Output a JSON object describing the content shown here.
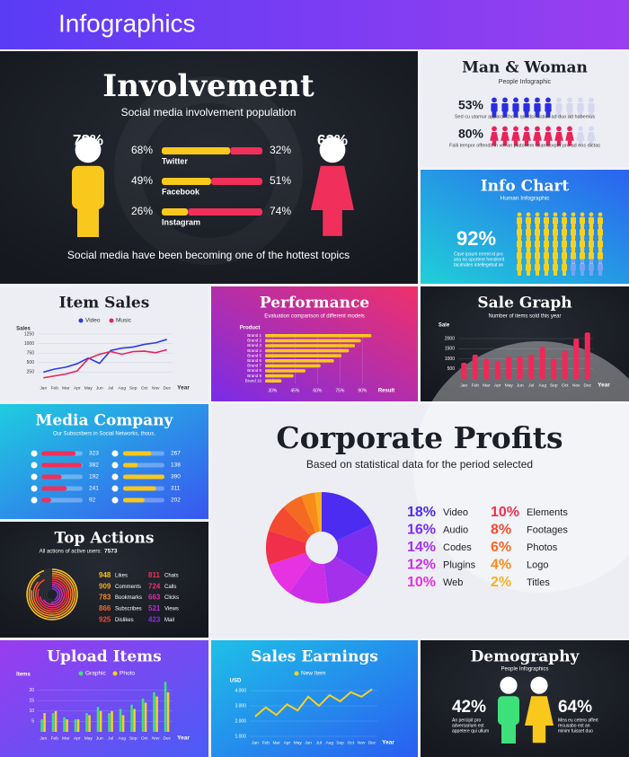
{
  "header": {
    "title": "Infographics"
  },
  "involvement": {
    "title": "Involvement",
    "subtitle": "Social media involvement population",
    "left_label": "78%",
    "right_label": "62%",
    "rows": [
      {
        "name": "Twitter",
        "left": 68,
        "left_label": "68%",
        "right": 32,
        "right_label": "32%"
      },
      {
        "name": "Facebook",
        "left": 49,
        "left_label": "49%",
        "right": 51,
        "right_label": "51%"
      },
      {
        "name": "Instagram",
        "left": 26,
        "left_label": "26%",
        "right": 74,
        "right_label": "74%"
      }
    ],
    "footer": "Social media have been becoming one of the hottest topics"
  },
  "man_woman": {
    "title": "Man & Woman",
    "subtitle": "People Infographic",
    "rows": [
      {
        "value": 53,
        "label": "53%",
        "text": "Sed cu utamur apparat choro quodsi fastidii ad duo ad habemus",
        "color": "#2b2ee0"
      },
      {
        "value": 80,
        "label": "80%",
        "text": "Falli tempor offendit in vel an platonem ullamcorper pro ad eos dictas",
        "color": "#e8245a"
      }
    ]
  },
  "info_chart": {
    "title": "Info Chart",
    "subtitle": "Human Infographic",
    "value": 92,
    "label": "92%",
    "text_lines": [
      "Cave ipsum errent id pro",
      "sea no oportere hendrerit",
      "tacimates intellegebat an"
    ]
  },
  "item_sales": {
    "type": "line",
    "title": "Item Sales",
    "y_label": "Sales",
    "x_label": "Year",
    "categories": [
      "Jan",
      "Feb",
      "Mar",
      "Apr",
      "May",
      "Jun",
      "Jul",
      "Aug",
      "Sep",
      "Oct",
      "Nov",
      "Dec"
    ],
    "series": [
      {
        "name": "Video",
        "color": "#2b3be8",
        "values": [
          250,
          330,
          380,
          470,
          620,
          480,
          820,
          880,
          910,
          980,
          1020,
          1110
        ]
      },
      {
        "name": "Music",
        "color": "#e8245a",
        "values": [
          100,
          150,
          200,
          280,
          600,
          720,
          790,
          720,
          790,
          800,
          760,
          840
        ]
      }
    ],
    "ylim": [
      0,
      1250
    ],
    "yticks": [
      250,
      500,
      750,
      1000,
      1250
    ]
  },
  "performance": {
    "type": "hbar",
    "title": "Performance",
    "subtitle": "Evaluation comparison of different models",
    "y_label": "Product",
    "x_label": "Result",
    "color": "#f8c81c",
    "categories": [
      "Brand 1",
      "Brand 2",
      "Brand 3",
      "Brand 4",
      "Brand 5",
      "Brand 6",
      "Brand 7",
      "Brand 8",
      "Brand 9",
      "Brand 10"
    ],
    "values": [
      96,
      89,
      85,
      81,
      76,
      71,
      62,
      52,
      44,
      36
    ],
    "xlim": [
      25,
      100
    ],
    "xticks": [
      {
        "value": 30,
        "label": "30%"
      },
      {
        "value": 45,
        "label": "45%"
      },
      {
        "value": 60,
        "label": "60%"
      },
      {
        "value": 75,
        "label": "75%"
      },
      {
        "value": 90,
        "label": "90%"
      }
    ]
  },
  "sale_graph": {
    "type": "bar",
    "title": "Sale Graph",
    "subtitle": "Number of items sold this year",
    "y_label": "Sale",
    "x_label": "Year",
    "color": "#f02858",
    "categories": [
      "Jan",
      "Feb",
      "Mar",
      "Apr",
      "May",
      "Jun",
      "Jul",
      "Aug",
      "Sep",
      "Oct",
      "Nov",
      "Dec"
    ],
    "values": [
      800,
      1200,
      1000,
      900,
      1100,
      1100,
      1200,
      1600,
      1000,
      1400,
      2000,
      2300
    ],
    "ylim": [
      0,
      2400
    ],
    "yticks": [
      500,
      1000,
      1500,
      2000
    ]
  },
  "media_company": {
    "title": "Media Company",
    "subtitle": "Our Subscribers in Social Networks, thous.",
    "left_color": "#f0305a",
    "right_color": "#f8c81c",
    "left_values": [
      323,
      382,
      192,
      241,
      92
    ],
    "right_values": [
      267,
      138,
      390,
      311,
      202
    ]
  },
  "corporate_profits": {
    "type": "donut",
    "title": "Corporate Profits",
    "subtitle": "Based on statistical data for the period selected",
    "segments": [
      {
        "name": "Video",
        "value": 18,
        "label": "18%",
        "color": "#4b2cf0"
      },
      {
        "name": "Audio",
        "value": 16,
        "label": "16%",
        "color": "#7a2ef0"
      },
      {
        "name": "Codes",
        "value": 14,
        "label": "14%",
        "color": "#a530ec"
      },
      {
        "name": "Plugins",
        "value": 12,
        "label": "12%",
        "color": "#cc2ee8"
      },
      {
        "name": "Web",
        "value": 10,
        "label": "10%",
        "color": "#e632e0"
      },
      {
        "name": "Elements",
        "value": 10,
        "label": "10%",
        "color": "#f0304a"
      },
      {
        "name": "Footages",
        "value": 8,
        "label": "8%",
        "color": "#f34a30"
      },
      {
        "name": "Photos",
        "value": 6,
        "label": "6%",
        "color": "#f56a22"
      },
      {
        "name": "Logo",
        "value": 4,
        "label": "4%",
        "color": "#f88c1a"
      },
      {
        "name": "Titles",
        "value": 2,
        "label": "2%",
        "color": "#f8b020"
      }
    ]
  },
  "top_actions": {
    "title": "Top Actions",
    "subtitle": "All actions of active users:",
    "total": 7573,
    "items": [
      {
        "value": 948,
        "name": "Likes",
        "color": "#f8c020"
      },
      {
        "value": 909,
        "name": "Comments",
        "color": "#f8a820"
      },
      {
        "value": 783,
        "name": "Bookmarks",
        "color": "#f78a22"
      },
      {
        "value": 866,
        "name": "Subscribes",
        "color": "#f56a28"
      },
      {
        "value": 925,
        "name": "Dislikes",
        "color": "#f34a34"
      },
      {
        "value": 811,
        "name": "Chats",
        "color": "#f0304a"
      },
      {
        "value": 724,
        "name": "Calls",
        "color": "#e82e78"
      },
      {
        "value": 663,
        "name": "Clicks",
        "color": "#d82ea8"
      },
      {
        "value": 521,
        "name": "Views",
        "color": "#b830d8"
      },
      {
        "value": 423,
        "name": "Mail",
        "color": "#8a30ec"
      }
    ]
  },
  "upload_items": {
    "type": "grouped_bar",
    "title": "Upload Items",
    "y_label": "Items",
    "x_label": "Year",
    "categories": [
      "Jan",
      "Feb",
      "Mar",
      "Apr",
      "May",
      "Jun",
      "Jul",
      "Aug",
      "Sep",
      "Oct",
      "Nov",
      "Dec"
    ],
    "series": [
      {
        "name": "Graphic",
        "color": "#3ee07a",
        "values": [
          6,
          9,
          7,
          6,
          9,
          12,
          9,
          11,
          13,
          16,
          19,
          24
        ]
      },
      {
        "name": "Photo",
        "color": "#f8d020",
        "values": [
          9,
          10,
          6,
          6,
          8,
          10,
          10,
          8,
          11,
          14,
          17,
          19
        ]
      }
    ],
    "ylim": [
      0,
      25
    ],
    "yticks": [
      5,
      10,
      15,
      20
    ]
  },
  "sales_earnings": {
    "type": "line",
    "title": "Sales Earnings",
    "y_label": "USD",
    "x_label": "Year",
    "categories": [
      "Jan",
      "Feb",
      "Mar",
      "Apr",
      "May",
      "Jun",
      "Jul",
      "Aug",
      "Sep",
      "Oct",
      "Nov",
      "Dec"
    ],
    "series": [
      {
        "name": "New Item",
        "color": "#f8d020",
        "values": [
          2300,
          2900,
          2400,
          3100,
          2700,
          3600,
          3000,
          3700,
          3300,
          3900,
          3600,
          4100
        ]
      }
    ],
    "ylim": [
      1000,
      4300
    ],
    "yticks": [
      {
        "value": 1000,
        "label": "1.000"
      },
      {
        "value": 2000,
        "label": "2.000"
      },
      {
        "value": 3000,
        "label": "3.000"
      },
      {
        "value": 4000,
        "label": "4.000"
      }
    ]
  },
  "demography": {
    "title": "Demography",
    "subtitle": "People Infographics",
    "left": {
      "label": "42%",
      "text_lines": [
        "An percipit pro",
        "adversarium est",
        "appetere qui ullum"
      ]
    },
    "right": {
      "label": "64%",
      "text_lines": [
        "Mea eu cetero affert",
        "recusabo est an",
        "minim fuisset duo"
      ]
    }
  }
}
